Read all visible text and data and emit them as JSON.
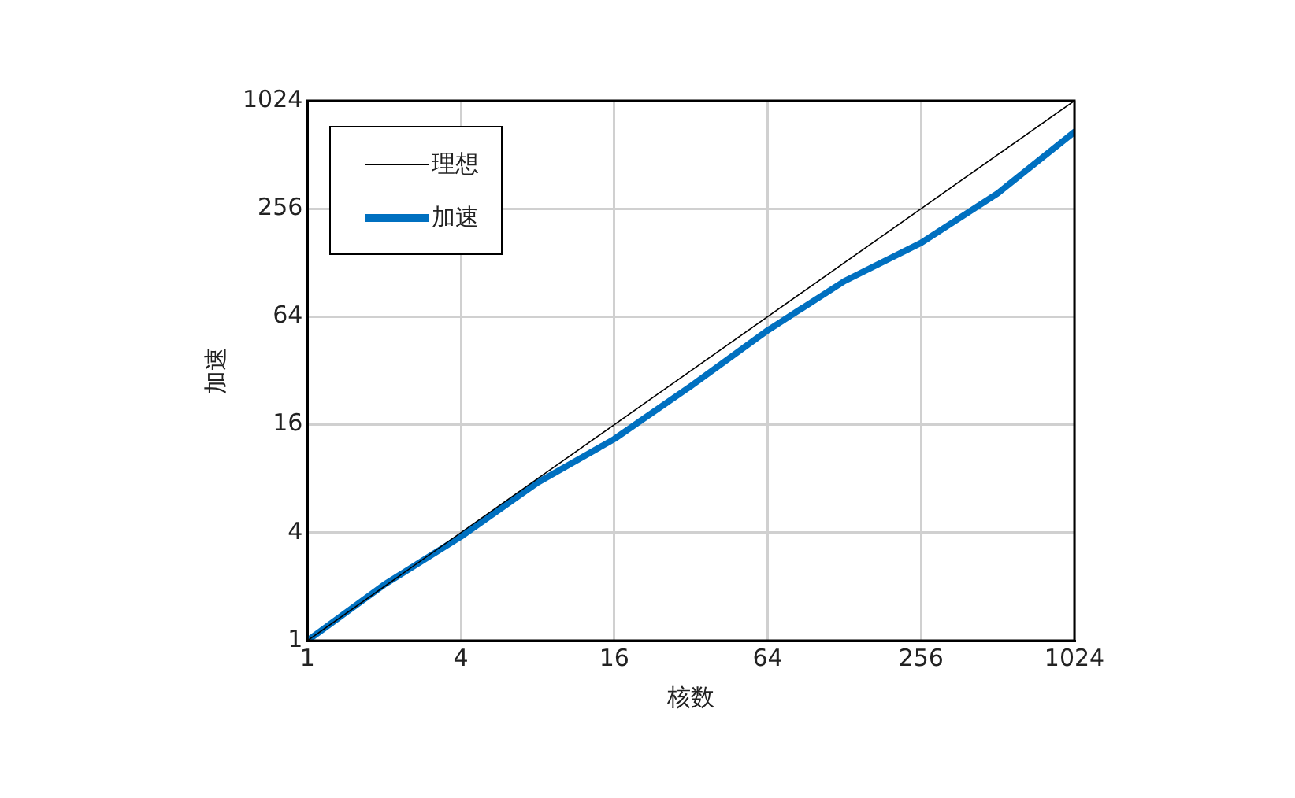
{
  "chart_data": {
    "type": "line",
    "xlabel": "核数",
    "ylabel": "加速",
    "xlim": [
      1,
      1024
    ],
    "xticks": [
      1,
      4,
      16,
      64,
      256,
      1024
    ],
    "ylim": [
      1,
      1024
    ],
    "yticks": [
      1,
      4,
      16,
      64,
      256,
      1024
    ],
    "log": "xy",
    "grid": true,
    "legend": "top left",
    "marker": "none",
    "series": [
      {
        "name": "理想",
        "color": "#000000",
        "x": [
          1,
          1024
        ],
        "values": [
          1,
          1024
        ]
      },
      {
        "name": "加速",
        "color": "#0070c0",
        "x": [
          1,
          2,
          4,
          8,
          16,
          32,
          64,
          128,
          256,
          512,
          1024
        ],
        "values": [
          1,
          2.05,
          3.8,
          7.6,
          13.3,
          26.3,
          53.7,
          101,
          165,
          312,
          686
        ]
      }
    ]
  }
}
